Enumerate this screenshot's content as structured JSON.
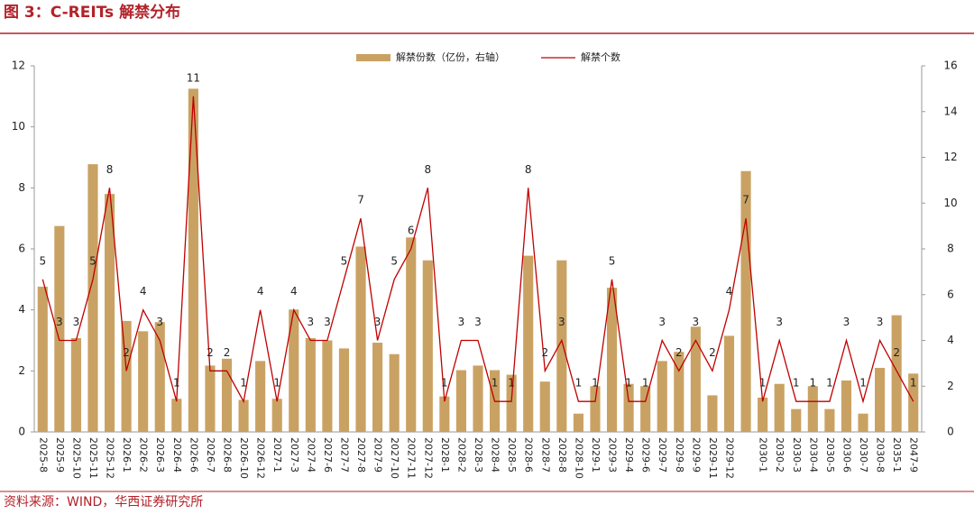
{
  "chart_data": {
    "type": "bar-line",
    "title": "图 3：C-REITs 解禁分布",
    "source": "资料来源：WIND，华西证券研究所",
    "categories": [
      "2025-8",
      "2025-9",
      "2025-10",
      "2025-11",
      "2025-12",
      "2026-1",
      "2026-2",
      "2026-3",
      "2026-4",
      "2026-6",
      "2026-7",
      "2026-8",
      "2026-10",
      "2026-12",
      "2027-1",
      "2027-3",
      "2027-4",
      "2027-6",
      "2027-7",
      "2027-8",
      "2027-9",
      "2027-10",
      "2027-11",
      "2027-12",
      "2028-1",
      "2028-2",
      "2028-3",
      "2028-4",
      "2028-5",
      "2028-6",
      "2028-7",
      "2028-8",
      "2028-10",
      "2029-1",
      "2029-3",
      "2029-4",
      "2029-6",
      "2029-7",
      "2029-8",
      "2029-9",
      "2029-11",
      "2029-12",
      null,
      "2030-1",
      "2030-2",
      "2030-3",
      "2030-4",
      "2030-5",
      "2030-6",
      "2030-7",
      "2030-8",
      "2035-1",
      "2047-9"
    ],
    "series": [
      {
        "name": "解禁份数（亿份，右轴）",
        "type": "bar",
        "axis": "y2",
        "color": "#c9a263",
        "values": [
          6.35,
          9.0,
          4.1,
          11.7,
          10.4,
          4.85,
          4.4,
          4.8,
          1.45,
          15.0,
          2.9,
          3.2,
          1.4,
          3.1,
          1.45,
          5.35,
          4.1,
          4.0,
          3.65,
          8.1,
          3.9,
          3.4,
          8.5,
          7.5,
          1.55,
          2.7,
          2.9,
          2.7,
          2.5,
          7.7,
          2.2,
          7.5,
          0.8,
          2.0,
          6.3,
          2.1,
          2.0,
          3.1,
          3.5,
          4.6,
          1.6,
          4.2,
          11.4,
          1.5,
          2.1,
          1.0,
          2.0,
          1.0,
          2.25,
          0.8,
          2.8,
          5.1,
          2.55
        ]
      },
      {
        "name": "解禁个数",
        "type": "line",
        "axis": "y",
        "color": "#c00000",
        "values": [
          5,
          3,
          3,
          5,
          8,
          2,
          4,
          3,
          1,
          11,
          2,
          2,
          1,
          4,
          1,
          4,
          3,
          3,
          5,
          7,
          3,
          5,
          6,
          8,
          1,
          3,
          3,
          1,
          1,
          8,
          2,
          3,
          1,
          1,
          5,
          1,
          1,
          3,
          2,
          3,
          2,
          4,
          7,
          1,
          3,
          1,
          1,
          1,
          3,
          1,
          3,
          2,
          1
        ]
      }
    ],
    "ylim": [
      0,
      12
    ],
    "yticks": [
      0,
      2,
      4,
      6,
      8,
      10,
      12
    ],
    "y2lim": [
      0,
      16
    ],
    "y2ticks": [
      0,
      2,
      4,
      6,
      8,
      10,
      12,
      14,
      16
    ],
    "legend": "top"
  }
}
